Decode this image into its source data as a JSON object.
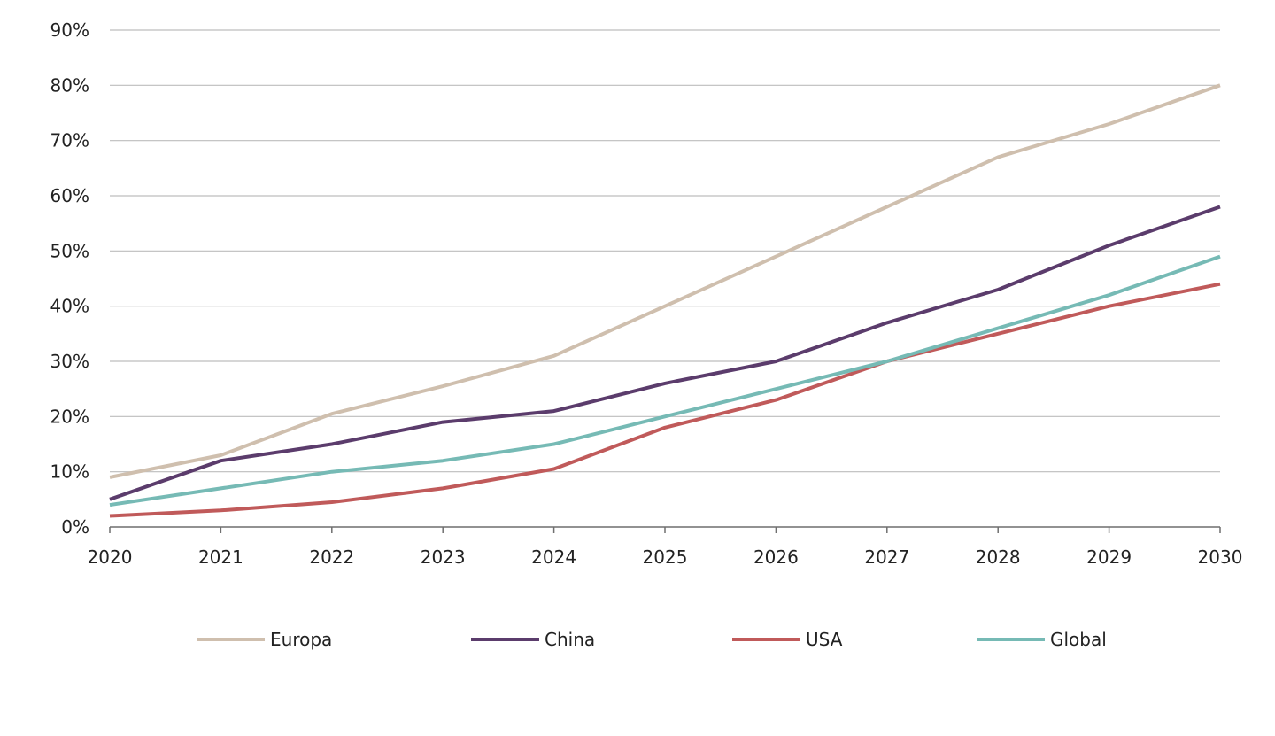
{
  "chart_data": {
    "type": "line",
    "title": "",
    "xlabel": "",
    "ylabel": "",
    "x": [
      2020,
      2021,
      2022,
      2023,
      2024,
      2025,
      2026,
      2027,
      2028,
      2029,
      2030
    ],
    "x_tick_labels": [
      "2020",
      "2021",
      "2022",
      "2023",
      "2024",
      "2025",
      "2026",
      "2027",
      "2028",
      "2029",
      "2030"
    ],
    "y_ticks": [
      0,
      10,
      20,
      30,
      40,
      50,
      60,
      70,
      80,
      90
    ],
    "y_tick_labels": [
      "0%",
      "10%",
      "20%",
      "30%",
      "40%",
      "50%",
      "60%",
      "70%",
      "80%",
      "90%"
    ],
    "ylim": [
      0,
      90
    ],
    "y_unit": "%",
    "grid": "horizontal",
    "legend_position": "bottom",
    "series": [
      {
        "name": "Europa",
        "color": "#cfbfae",
        "values": [
          9,
          13,
          20.5,
          25.5,
          31,
          40,
          49,
          58,
          67,
          73,
          80
        ]
      },
      {
        "name": "China",
        "color": "#5b3c6c",
        "values": [
          5,
          12,
          15,
          19,
          21,
          26,
          30,
          37,
          43,
          51,
          58
        ]
      },
      {
        "name": "USA",
        "color": "#c05a5a",
        "values": [
          2,
          3,
          4.5,
          7,
          10.5,
          18,
          23,
          30,
          35,
          40,
          44
        ]
      },
      {
        "name": "Global",
        "color": "#76bab5",
        "values": [
          4,
          7,
          10,
          12,
          15,
          20,
          25,
          30,
          36,
          42,
          49
        ]
      }
    ]
  }
}
